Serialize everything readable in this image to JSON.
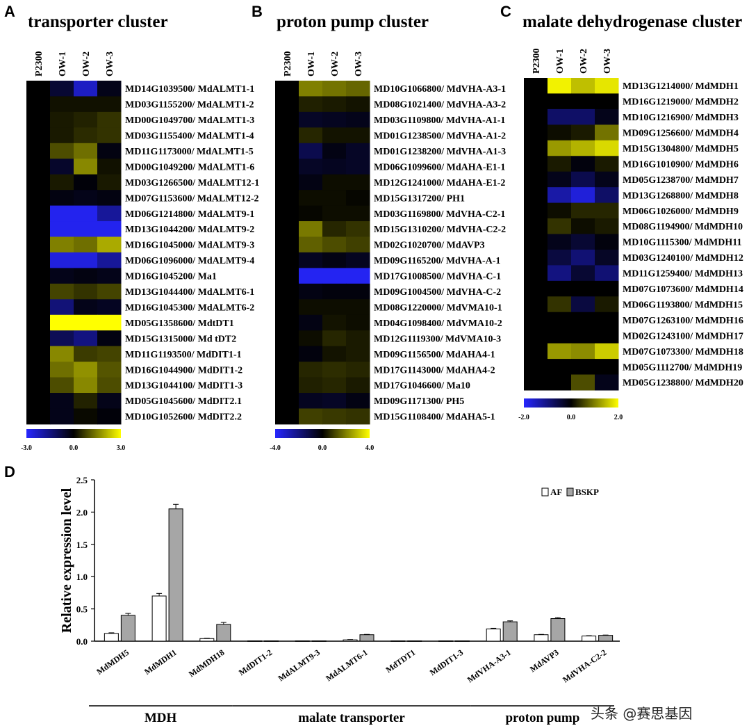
{
  "panels": {
    "a": {
      "letter": "A",
      "title": "transporter cluster"
    },
    "b": {
      "letter": "B",
      "title": "proton pump cluster"
    },
    "c": {
      "letter": "C",
      "title": "malate dehydrogenase cluster"
    },
    "d": {
      "letter": "D"
    }
  },
  "watermark": "头条 @赛思基因",
  "chart_data": [
    {
      "type": "heatmap",
      "title": "transporter cluster",
      "columns": [
        "P2300",
        "OW-1",
        "OW-2",
        "OW-3"
      ],
      "colorbar": {
        "min": -3.0,
        "mid": 0.0,
        "max": 3.0,
        "labels": [
          "-3.0",
          "0.0",
          "3.0"
        ]
      },
      "rows": [
        "MD14G1039500/ MdALMT1-1",
        "MD03G1155200/ MdALMT1-2",
        "MD00G1049700/ MdALMT1-3",
        "MD03G1155400/ MdALMT1-4",
        "MD11G1173000/ MdALMT1-5",
        "MD00G1049200/ MdALMT1-6",
        "MD03G1266500/ MdALMT12-1",
        "MD07G1153600/ MdALMT12-2",
        "MD06G1214800/ MdALMT9-1",
        "MD13G1044200/ MdALMT9-2",
        "MD16G1045000/ MdALMT9-3",
        "MD06G1096000/ MdALMT9-4",
        "MD16G1045200/ Ma1",
        "MD13G1044400/ MdALMT6-1",
        "MD16G1045300/ MdALMT6-2",
        "MD05G1358600/ MdtDT1",
        "MD15G1315000/ Md tDT2",
        "MD11G1193500/ MdDIT1-1",
        "MD16G1044900/ MdDIT1-2",
        "MD13G1044100/ MdDIT1-3",
        "MD05G1045600/ MdDIT2.1",
        "MD10G1052600/ MdDIT2.2"
      ],
      "values": [
        [
          0,
          -0.6,
          -2.3,
          -0.3
        ],
        [
          0,
          0.2,
          0.2,
          0.2
        ],
        [
          0,
          0.3,
          0.4,
          0.6
        ],
        [
          0,
          0.3,
          0.5,
          0.6
        ],
        [
          0,
          0.9,
          1.3,
          -0.2
        ],
        [
          0,
          -0.5,
          1.6,
          0.2
        ],
        [
          0,
          0.3,
          -0.1,
          0.3
        ],
        [
          0,
          -0.2,
          -0.3,
          -0.2
        ],
        [
          0,
          -2.8,
          -2.8,
          -1.8
        ],
        [
          0,
          -2.8,
          -2.8,
          -2.8
        ],
        [
          0,
          1.5,
          1.3,
          2.0
        ],
        [
          0,
          -2.6,
          -2.6,
          -1.8
        ],
        [
          0,
          -0.3,
          -0.2,
          -0.3
        ],
        [
          0,
          0.8,
          0.6,
          0.8
        ],
        [
          0,
          -1.4,
          -0.3,
          -0.4
        ],
        [
          0,
          3.0,
          3.0,
          3.0
        ],
        [
          0,
          -1.0,
          -1.5,
          -0.2
        ],
        [
          0,
          1.6,
          0.7,
          0.8
        ],
        [
          0,
          1.3,
          1.7,
          1.0
        ],
        [
          0,
          0.9,
          1.6,
          0.9
        ],
        [
          0,
          -0.3,
          0.4,
          -0.3
        ],
        [
          0,
          -0.3,
          0.1,
          -0.1
        ]
      ]
    },
    {
      "type": "heatmap",
      "title": "proton pump cluster",
      "columns": [
        "P2300",
        "OW-1",
        "OW-2",
        "OW-3"
      ],
      "colorbar": {
        "min": -4.0,
        "mid": 0.0,
        "max": 4.0,
        "labels": [
          "-4.0",
          "0.0",
          "4.0"
        ]
      },
      "rows": [
        "MD10G1066800/ MdVHA-A3-1",
        "MD08G1021400/ MdVHA-A3-2",
        "MD03G1109800/ MdVHA-A1-1",
        "MD01G1238500/ MdVHA-A1-2",
        "MD01G1238200/ MdVHA-A1-3",
        "MD06G1099600/ MdAHA-E1-1",
        "MD12G1241000/ MdAHA-E1-2",
        "MD15G1317200/ PH1",
        "MD03G1169800/ MdVHA-C2-1",
        "MD15G1310200/ MdVHA-C2-2",
        "MD02G1020700/ MdAVP3",
        "MD09G1165200/ MdVHA-A-1",
        "MD17G1008500/ MdVHA-C-1",
        "MD09G1004500/ MdVHA-C-2",
        "MD08G1220000/ MdVMA10-1",
        "MD04G1098400/ MdVMA10-2",
        "MD12G1119300/ MdVMA10-3",
        "MD09G1156500/ MdAHA4-1",
        "MD17G1143000/ MdAHA4-2",
        "MD17G1046600/ Ma10",
        "MD09G1171300/ PH5",
        "MD15G1108400/ MdAHA5-1"
      ],
      "values": [
        [
          0,
          2.0,
          1.8,
          1.6
        ],
        [
          0,
          0.5,
          0.4,
          0.3
        ],
        [
          0,
          -0.6,
          -0.5,
          -0.4
        ],
        [
          0,
          0.6,
          0.3,
          0.3
        ],
        [
          0,
          -1.2,
          -0.3,
          -0.6
        ],
        [
          0,
          -0.6,
          -0.5,
          -0.6
        ],
        [
          0,
          -0.3,
          0.2,
          0.2
        ],
        [
          0,
          0.2,
          0.2,
          0.1
        ],
        [
          0,
          0.1,
          0.2,
          0.2
        ],
        [
          0,
          1.9,
          0.6,
          0.8
        ],
        [
          0,
          1.5,
          1.2,
          1.0
        ],
        [
          0,
          -0.5,
          -0.3,
          -0.5
        ],
        [
          0,
          -3.8,
          -3.8,
          -3.8
        ],
        [
          0,
          -0.3,
          -0.2,
          -0.2
        ],
        [
          0,
          0.2,
          0.2,
          0.2
        ],
        [
          0,
          -0.3,
          0.3,
          0.2
        ],
        [
          0,
          0.2,
          0.6,
          0.4
        ],
        [
          0,
          -0.2,
          0.3,
          0.4
        ],
        [
          0,
          0.6,
          0.7,
          0.6
        ],
        [
          0,
          0.5,
          0.6,
          0.4
        ],
        [
          0,
          -0.5,
          -0.6,
          -0.3
        ],
        [
          0,
          1.0,
          0.9,
          0.8
        ]
      ]
    },
    {
      "type": "heatmap",
      "title": "malate dehydrogenase cluster",
      "columns": [
        "P2300",
        "OW-1",
        "OW-2",
        "OW-3"
      ],
      "colorbar": {
        "min": -2.0,
        "mid": 0.0,
        "max": 2.0,
        "labels": [
          "-2.0",
          "0.0",
          "2.0"
        ]
      },
      "rows": [
        "MD13G1214000/ MdMDH1",
        "MD16G1219000/ MdMDH2",
        "MD10G1216900/ MdMDH3",
        "MD09G1256600/ MdMDH4",
        "MD15G1304800/ MdMDH5",
        "MD16G1010900/ MdMDH6",
        "MD05G1238700/ MdMDH7",
        "MD13G1268800/ MdMDH8",
        "MD06G1026000/ MdMDH9",
        "MD08G1194900/ MdMDH10",
        "MD10G1115300/ MdMDH11",
        "MD03G1240100/ MdMDH12",
        "MD11G1259400/ MdMDH13",
        "MD07G1073600/ MdMDH14",
        "MD06G1193800/ MdMDH15",
        "MD07G1263100/ MdMDH16",
        "MD02G1243100/ MdMDH17",
        "MD07G1073300/ MdMDH18",
        "MD05G1112700/ MdMDH19",
        "MD05G1238800/ MdMDH20"
      ],
      "values": [
        [
          0,
          1.9,
          1.5,
          1.8
        ],
        [
          0,
          0.0,
          0.0,
          0.0
        ],
        [
          0,
          -0.8,
          -0.8,
          -0.2
        ],
        [
          0,
          0.1,
          0.2,
          0.9
        ],
        [
          0,
          1.2,
          1.4,
          1.7
        ],
        [
          0,
          0.2,
          -0.1,
          0.2
        ],
        [
          0,
          -0.2,
          -0.6,
          -0.2
        ],
        [
          0,
          -1.3,
          -1.7,
          -0.8
        ],
        [
          0,
          0.1,
          0.3,
          0.3
        ],
        [
          0,
          0.4,
          0.1,
          0.2
        ],
        [
          0,
          -0.2,
          -0.4,
          -0.1
        ],
        [
          0,
          -0.5,
          -0.9,
          -0.3
        ],
        [
          0,
          -1.0,
          -0.4,
          -0.9
        ],
        [
          0,
          0.0,
          0.0,
          0.0
        ],
        [
          0,
          0.4,
          -0.5,
          0.2
        ],
        [
          0,
          0.0,
          0.0,
          0.0
        ],
        [
          0,
          0.0,
          0.0,
          0.0
        ],
        [
          0,
          1.2,
          1.1,
          1.6
        ],
        [
          0,
          0.0,
          0.0,
          0.0
        ],
        [
          0,
          0.0,
          0.6,
          -0.2
        ]
      ]
    },
    {
      "type": "bar",
      "title": "",
      "ylabel": "Relative expression level",
      "xlabel": "",
      "ylim": [
        0,
        2.5
      ],
      "yticks": [
        "0.0",
        "0.5",
        "1.0",
        "1.5",
        "2.0",
        "2.5"
      ],
      "categories": [
        "MdMDH5",
        "MdMDH1",
        "MdMDH18",
        "MdDIT1-2",
        "MdALMT9-3",
        "MdALMT6-1",
        "MdTDT1",
        "MdDIT1-3",
        "MdVHA-A3-1",
        "MdAVP3",
        "MdVHA-C2-2"
      ],
      "series": [
        {
          "name": "AF",
          "color": "#ffffff",
          "values": [
            0.12,
            0.7,
            0.04,
            0.005,
            0.005,
            0.02,
            0.005,
            0.005,
            0.19,
            0.1,
            0.08
          ],
          "errors": [
            0.01,
            0.04,
            0.005,
            0,
            0,
            0.005,
            0,
            0,
            0.01,
            0.005,
            0.005
          ]
        },
        {
          "name": "BSKP",
          "color": "#a6a6a6",
          "values": [
            0.4,
            2.05,
            0.26,
            0.005,
            0.005,
            0.1,
            0.005,
            0.005,
            0.3,
            0.35,
            0.09
          ],
          "errors": [
            0.03,
            0.07,
            0.03,
            0,
            0,
            0.005,
            0,
            0,
            0.015,
            0.015,
            0.005
          ]
        }
      ],
      "legend": "top-right",
      "groups": [
        {
          "label": "MDH",
          "from": 0,
          "to": 2
        },
        {
          "label": "malate transporter",
          "from": 3,
          "to": 7
        },
        {
          "label": "proton pump",
          "from": 8,
          "to": 10
        }
      ]
    }
  ]
}
